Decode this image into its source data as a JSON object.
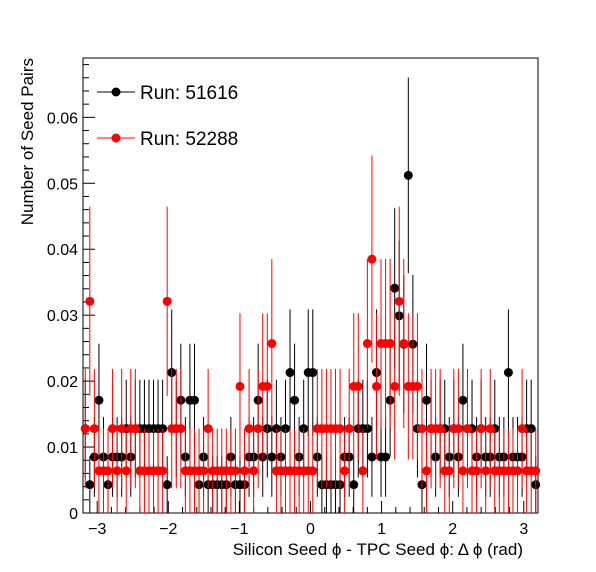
{
  "chart_data": {
    "type": "scatter",
    "title": "",
    "xlabel": "Silicon Seed  ϕ - TPC Seed  ϕ: Δ ϕ (rad)",
    "ylabel": "Number of Seed Pairs",
    "xlim": [
      -3.2,
      3.2
    ],
    "ylim": [
      0,
      0.069
    ],
    "x_ticks": [
      -3,
      -2,
      -1,
      0,
      1,
      2,
      3
    ],
    "x_tick_labels": [
      "−3",
      "−2",
      "−1",
      "0",
      "1",
      "2",
      "3"
    ],
    "y_ticks": [
      0,
      0.01,
      0.02,
      0.03,
      0.04,
      0.05,
      0.06
    ],
    "y_tick_labels": [
      "0",
      "0.01",
      "0.02",
      "0.03",
      "0.04",
      "0.05",
      "0.06"
    ],
    "legend_position": "top-left",
    "grid": false,
    "markers": "filled circles with vertical error bars",
    "bin_width": 0.0641,
    "series": [
      {
        "name": "Run: 51616",
        "color": "#000000",
        "x": [
          -3.168,
          -3.104,
          -3.04,
          -2.976,
          -2.912,
          -2.848,
          -2.784,
          -2.72,
          -2.656,
          -2.592,
          -2.528,
          -2.464,
          -2.4,
          -2.336,
          -2.272,
          -2.208,
          -2.144,
          -2.08,
          -2.016,
          -1.952,
          -1.888,
          -1.824,
          -1.76,
          -1.696,
          -1.632,
          -1.568,
          -1.504,
          -1.44,
          -1.376,
          -1.312,
          -1.248,
          -1.184,
          -1.12,
          -1.056,
          -0.992,
          -0.928,
          -0.864,
          -0.8,
          -0.736,
          -0.672,
          -0.608,
          -0.544,
          -0.48,
          -0.416,
          -0.352,
          -0.288,
          -0.224,
          -0.16,
          -0.096,
          -0.032,
          0.032,
          0.096,
          0.16,
          0.224,
          0.288,
          0.352,
          0.416,
          0.48,
          0.544,
          0.608,
          0.672,
          0.736,
          0.8,
          0.864,
          0.928,
          0.992,
          1.056,
          1.12,
          1.184,
          1.248,
          1.312,
          1.376,
          1.44,
          1.504,
          1.568,
          1.632,
          1.696,
          1.76,
          1.824,
          1.888,
          1.952,
          2.016,
          2.08,
          2.144,
          2.208,
          2.272,
          2.336,
          2.4,
          2.464,
          2.528,
          2.592,
          2.656,
          2.72,
          2.784,
          2.848,
          2.912,
          2.976,
          3.04,
          3.104,
          3.168
        ],
        "y": [
          0.0128,
          0.0043,
          0.0085,
          0.0171,
          0.0085,
          0.0043,
          0.0085,
          0.0085,
          0.0085,
          0.0128,
          0.0085,
          0.0128,
          0.0128,
          0.0128,
          0.0128,
          0.0128,
          0.0128,
          0.0128,
          0.0043,
          0.0213,
          0.0128,
          0.0171,
          0.0085,
          0.0171,
          0.0171,
          0.0043,
          0.0085,
          0.0043,
          0.0043,
          0.0043,
          0.0043,
          0.0043,
          0.0085,
          0.0043,
          0.0043,
          0.0043,
          0.0085,
          0.0085,
          0.0171,
          0.0085,
          0.0128,
          0.0085,
          0.0128,
          0.0085,
          0.0128,
          0.0213,
          0.0171,
          0.0085,
          0.0128,
          0.0213,
          0.0213,
          0.0085,
          0.0043,
          0.0043,
          0.0043,
          0.0043,
          0.0043,
          0.0085,
          0.0085,
          0.0043,
          0.0128,
          0.0128,
          0.0128,
          0.0085,
          0.0213,
          0.0085,
          0.0085,
          0.0171,
          0.0341,
          0.0299,
          0.0256,
          0.0512,
          0.0256,
          0.0128,
          0.0043,
          0.0171,
          0.0128,
          0.0085,
          0.0128,
          0.0128,
          0.0085,
          0.0128,
          0.0085,
          0.0171,
          0.0128,
          0.0128,
          0.0085,
          0.0128,
          0.0085,
          0.0085,
          0.0128,
          0.0085,
          0.0085,
          0.0213,
          0.0085,
          0.0085,
          0.0085,
          0.0128,
          0.0128,
          0.0043
        ]
      },
      {
        "name": "Run: 52288",
        "color": "#ff0000",
        "x": [
          -3.168,
          -3.104,
          -3.04,
          -2.976,
          -2.912,
          -2.848,
          -2.784,
          -2.72,
          -2.656,
          -2.592,
          -2.528,
          -2.464,
          -2.4,
          -2.336,
          -2.272,
          -2.208,
          -2.144,
          -2.08,
          -2.016,
          -1.952,
          -1.888,
          -1.824,
          -1.76,
          -1.696,
          -1.632,
          -1.568,
          -1.504,
          -1.44,
          -1.376,
          -1.312,
          -1.248,
          -1.184,
          -1.12,
          -1.056,
          -0.992,
          -0.928,
          -0.864,
          -0.8,
          -0.736,
          -0.672,
          -0.608,
          -0.544,
          -0.48,
          -0.416,
          -0.352,
          -0.288,
          -0.224,
          -0.16,
          -0.096,
          -0.032,
          0.032,
          0.096,
          0.16,
          0.224,
          0.288,
          0.352,
          0.416,
          0.48,
          0.544,
          0.608,
          0.672,
          0.736,
          0.8,
          0.864,
          0.928,
          0.992,
          1.056,
          1.12,
          1.184,
          1.248,
          1.312,
          1.376,
          1.44,
          1.504,
          1.568,
          1.632,
          1.696,
          1.76,
          1.824,
          1.888,
          1.952,
          2.016,
          2.08,
          2.144,
          2.208,
          2.272,
          2.336,
          2.4,
          2.464,
          2.528,
          2.592,
          2.656,
          2.72,
          2.784,
          2.848,
          2.912,
          2.976,
          3.04,
          3.104,
          3.168
        ],
        "y": [
          0.0128,
          0.0321,
          0.0128,
          0.0064,
          0.0064,
          0.0064,
          0.0128,
          0.0064,
          0.0128,
          0.0064,
          0.0128,
          0.0128,
          0.0064,
          0.0064,
          0.0064,
          0.0064,
          0.0064,
          0.0064,
          0.0321,
          0.0128,
          0.0128,
          0.0128,
          0.0064,
          0.0064,
          0.0064,
          0.0064,
          0.0064,
          0.0128,
          0.0064,
          0.0064,
          0.0064,
          0.0064,
          0.0064,
          0.0064,
          0.0192,
          0.0064,
          0.0128,
          0.0064,
          0.0128,
          0.0192,
          0.0192,
          0.0257,
          0.0064,
          0.0064,
          0.0064,
          0.0064,
          0.0064,
          0.0064,
          0.0064,
          0.0064,
          0.0064,
          0.0128,
          0.0128,
          0.0128,
          0.0128,
          0.0128,
          0.0128,
          0.0064,
          0.0128,
          0.0192,
          0.0192,
          0.0064,
          0.0257,
          0.0385,
          0.0192,
          0.0257,
          0.0257,
          0.0257,
          0.0192,
          0.0321,
          0.0257,
          0.0192,
          0.0192,
          0.0192,
          0.0128,
          0.0064,
          0.0128,
          0.0128,
          0.0128,
          0.0064,
          0.0064,
          0.0128,
          0.0128,
          0.0064,
          0.0128,
          0.0064,
          0.0064,
          0.0128,
          0.0064,
          0.0128,
          0.0064,
          0.0064,
          0.0064,
          0.0064,
          0.0064,
          0.0064,
          0.0128,
          0.0064,
          0.0064,
          0.0064
        ]
      }
    ]
  }
}
